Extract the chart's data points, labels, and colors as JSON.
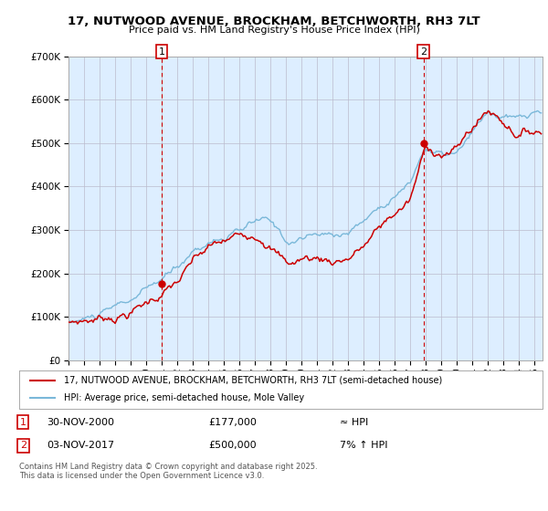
{
  "title_line1": "17, NUTWOOD AVENUE, BROCKHAM, BETCHWORTH, RH3 7LT",
  "title_line2": "Price paid vs. HM Land Registry's House Price Index (HPI)",
  "legend_label1": "17, NUTWOOD AVENUE, BROCKHAM, BETCHWORTH, RH3 7LT (semi-detached house)",
  "legend_label2": "HPI: Average price, semi-detached house, Mole Valley",
  "annotation1_label": "1",
  "annotation1_date": "30-NOV-2000",
  "annotation1_price": "£177,000",
  "annotation1_hpi": "≈ HPI",
  "annotation2_label": "2",
  "annotation2_date": "03-NOV-2017",
  "annotation2_price": "£500,000",
  "annotation2_hpi": "7% ↑ HPI",
  "footer": "Contains HM Land Registry data © Crown copyright and database right 2025.\nThis data is licensed under the Open Government Licence v3.0.",
  "hpi_color": "#7ab8d9",
  "price_color": "#cc0000",
  "annotation_color": "#cc0000",
  "background_color": "#ffffff",
  "plot_bg_color": "#ddeeff",
  "grid_color": "#bbbbcc",
  "ylim": [
    0,
    700000
  ],
  "yticks": [
    0,
    100000,
    200000,
    300000,
    400000,
    500000,
    600000,
    700000
  ],
  "xlim_start": 1995.0,
  "xlim_end": 2025.5,
  "sale1_year": 2001.0,
  "sale1_price": 177000,
  "sale2_year": 2017.833,
  "sale2_price": 500000
}
